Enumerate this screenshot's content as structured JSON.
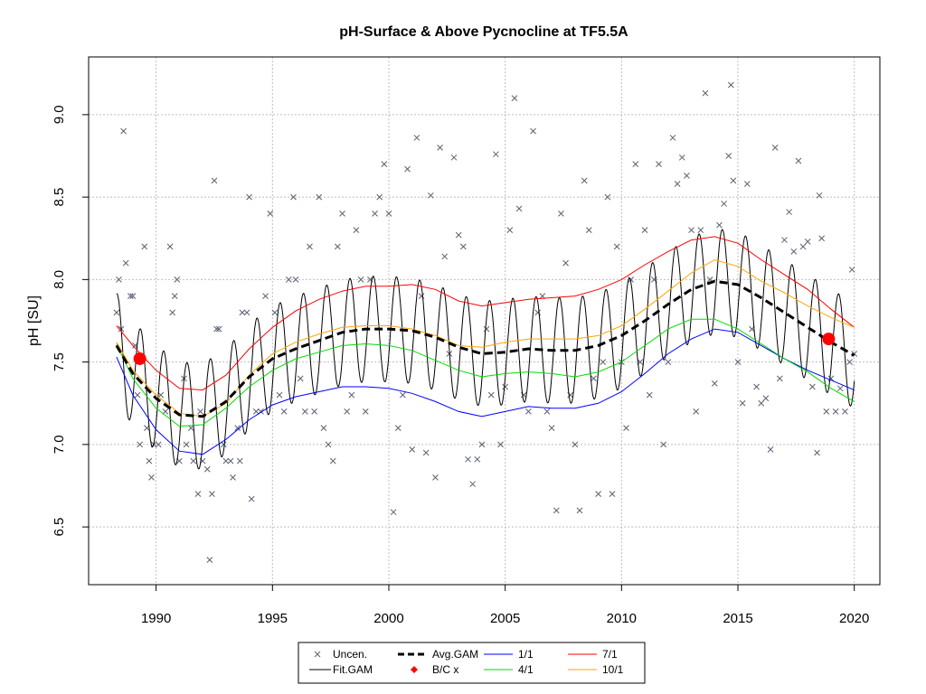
{
  "chart_data": {
    "type": "line",
    "title": "pH-Surface & Above Pycnocline at TF5.5A",
    "xlabel": "",
    "ylabel": "pH [SU]",
    "xlim": [
      1987.1,
      2021.1
    ],
    "ylim": [
      6.15,
      9.35
    ],
    "x_ticks": [
      1990,
      1995,
      2000,
      2005,
      2010,
      2015,
      2020
    ],
    "y_ticks": [
      6.5,
      7.0,
      7.5,
      8.0,
      8.5,
      9.0
    ],
    "y_tick_labels": [
      "6.5",
      "7.0",
      "7.5",
      "8.0",
      "8.5",
      "9.0"
    ],
    "grid": true,
    "legend_position": "bottom-center",
    "colors": {
      "uncensored": "#5a6172",
      "fit_gam": "#000000",
      "avg_gam": "#000000",
      "bc": "#ff0000",
      "s1": "#0000ff",
      "s4": "#00dd00",
      "s7": "#ff0000",
      "s10": "#ffa500",
      "grid": "#bebebe"
    },
    "legend": [
      {
        "key": "uncen",
        "label": "Uncen."
      },
      {
        "key": "avg",
        "label": "Avg.GAM"
      },
      {
        "key": "s1",
        "label": "1/1"
      },
      {
        "key": "s7",
        "label": "7/1"
      },
      {
        "key": "fit",
        "label": "Fit.GAM"
      },
      {
        "key": "bc",
        "label": "B/C x"
      },
      {
        "key": "s4",
        "label": "4/1"
      },
      {
        "key": "s10",
        "label": "10/1"
      }
    ],
    "seasonal_amplitude": 0.32,
    "series": [
      {
        "name": "Avg.GAM",
        "key": "avg",
        "style": "dashed",
        "x": [
          1988.3,
          1989,
          1990,
          1991,
          1992,
          1993,
          1994,
          1995,
          1996,
          1997,
          1998,
          1999,
          2000,
          2001,
          2002,
          2003,
          2004,
          2005,
          2006,
          2007,
          2008,
          2009,
          2010,
          2011,
          2012,
          2013,
          2014,
          2015,
          2016,
          2017,
          2018,
          2019,
          2020
        ],
        "y": [
          7.6,
          7.43,
          7.28,
          7.18,
          7.17,
          7.26,
          7.41,
          7.52,
          7.58,
          7.63,
          7.68,
          7.7,
          7.7,
          7.69,
          7.65,
          7.59,
          7.55,
          7.56,
          7.58,
          7.57,
          7.57,
          7.6,
          7.66,
          7.75,
          7.85,
          7.94,
          7.99,
          7.97,
          7.89,
          7.8,
          7.71,
          7.62,
          7.54
        ]
      },
      {
        "name": "1/1",
        "key": "s1",
        "x": [
          1988.3,
          1989,
          1990,
          1991,
          1992,
          1993,
          1994,
          1995,
          1996,
          1997,
          1998,
          1999,
          2000,
          2001,
          2002,
          2003,
          2004,
          2005,
          2006,
          2007,
          2008,
          2009,
          2010,
          2011,
          2012,
          2013,
          2014,
          2015,
          2016,
          2017,
          2018,
          2019,
          2020
        ],
        "y": [
          7.53,
          7.3,
          7.09,
          6.96,
          6.94,
          7.03,
          7.15,
          7.24,
          7.29,
          7.32,
          7.35,
          7.35,
          7.34,
          7.31,
          7.26,
          7.2,
          7.17,
          7.2,
          7.23,
          7.22,
          7.22,
          7.25,
          7.32,
          7.43,
          7.55,
          7.64,
          7.7,
          7.68,
          7.6,
          7.52,
          7.45,
          7.39,
          7.33
        ]
      },
      {
        "name": "4/1",
        "key": "s4",
        "x": [
          1988.3,
          1989,
          1990,
          1991,
          1992,
          1993,
          1994,
          1995,
          1996,
          1997,
          1998,
          1999,
          2000,
          2001,
          2002,
          2003,
          2004,
          2005,
          2006,
          2007,
          2008,
          2009,
          2010,
          2011,
          2012,
          2013,
          2014,
          2015,
          2016,
          2017,
          2018,
          2019,
          2020
        ],
        "y": [
          7.61,
          7.4,
          7.22,
          7.11,
          7.12,
          7.22,
          7.35,
          7.45,
          7.52,
          7.56,
          7.6,
          7.61,
          7.6,
          7.57,
          7.51,
          7.45,
          7.41,
          7.43,
          7.44,
          7.43,
          7.41,
          7.44,
          7.5,
          7.6,
          7.7,
          7.76,
          7.76,
          7.7,
          7.61,
          7.52,
          7.44,
          7.34,
          7.26
        ]
      },
      {
        "name": "7/1",
        "key": "s7",
        "x": [
          1988.3,
          1989,
          1990,
          1991,
          1992,
          1993,
          1994,
          1995,
          1996,
          1997,
          1998,
          1999,
          2000,
          2001,
          2002,
          2003,
          2004,
          2005,
          2006,
          2007,
          2008,
          2009,
          2010,
          2011,
          2012,
          2013,
          2014,
          2015,
          2016,
          2017,
          2018,
          2019,
          2020
        ],
        "y": [
          7.72,
          7.6,
          7.45,
          7.34,
          7.33,
          7.42,
          7.58,
          7.71,
          7.81,
          7.88,
          7.93,
          7.96,
          7.96,
          7.97,
          7.94,
          7.87,
          7.84,
          7.86,
          7.88,
          7.89,
          7.9,
          7.94,
          8.0,
          8.09,
          8.17,
          8.24,
          8.26,
          8.22,
          8.12,
          8.03,
          7.94,
          7.82,
          7.71
        ]
      },
      {
        "name": "10/1",
        "key": "s10",
        "x": [
          1988.3,
          1989,
          1990,
          1991,
          1992,
          1993,
          1994,
          1995,
          1996,
          1997,
          1998,
          1999,
          2000,
          2001,
          2002,
          2003,
          2004,
          2005,
          2006,
          2007,
          2008,
          2009,
          2010,
          2011,
          2012,
          2013,
          2014,
          2015,
          2016,
          2017,
          2018,
          2019,
          2020
        ],
        "y": [
          7.62,
          7.45,
          7.3,
          7.19,
          7.17,
          7.25,
          7.42,
          7.55,
          7.62,
          7.67,
          7.71,
          7.72,
          7.72,
          7.7,
          7.66,
          7.6,
          7.59,
          7.62,
          7.64,
          7.64,
          7.64,
          7.66,
          7.72,
          7.82,
          7.93,
          8.04,
          8.12,
          8.08,
          7.99,
          7.92,
          7.84,
          7.77,
          7.71
        ]
      }
    ],
    "bc_points": [
      {
        "x": 1989.3,
        "y": 7.52
      },
      {
        "x": 2018.9,
        "y": 7.64
      }
    ],
    "uncensored_points": [
      [
        1988.3,
        7.8
      ],
      [
        1988.4,
        8.0
      ],
      [
        1988.5,
        7.7
      ],
      [
        1988.6,
        8.9
      ],
      [
        1988.7,
        8.1
      ],
      [
        1988.9,
        7.9
      ],
      [
        1989.0,
        7.9
      ],
      [
        1989.1,
        7.6
      ],
      [
        1989.2,
        7.3
      ],
      [
        1989.3,
        7.0
      ],
      [
        1989.5,
        8.2
      ],
      [
        1989.6,
        7.1
      ],
      [
        1989.7,
        6.9
      ],
      [
        1989.8,
        6.8
      ],
      [
        1989.9,
        7.0
      ],
      [
        1990.1,
        7.0
      ],
      [
        1990.2,
        7.3
      ],
      [
        1990.4,
        7.2
      ],
      [
        1990.6,
        8.2
      ],
      [
        1990.7,
        7.8
      ],
      [
        1990.8,
        7.9
      ],
      [
        1990.9,
        8.0
      ],
      [
        1991.0,
        6.9
      ],
      [
        1991.2,
        7.4
      ],
      [
        1991.3,
        7.0
      ],
      [
        1991.5,
        7.1
      ],
      [
        1991.6,
        6.9
      ],
      [
        1991.8,
        6.7
      ],
      [
        1991.9,
        7.2
      ],
      [
        1992.0,
        6.9
      ],
      [
        1992.2,
        6.85
      ],
      [
        1992.3,
        6.3
      ],
      [
        1992.4,
        6.7
      ],
      [
        1992.5,
        8.6
      ],
      [
        1992.6,
        7.7
      ],
      [
        1992.7,
        7.7
      ],
      [
        1992.9,
        7.0
      ],
      [
        1993.0,
        6.9
      ],
      [
        1993.2,
        6.9
      ],
      [
        1993.3,
        6.8
      ],
      [
        1993.5,
        7.1
      ],
      [
        1993.6,
        6.9
      ],
      [
        1993.7,
        7.8
      ],
      [
        1993.9,
        7.8
      ],
      [
        1994.0,
        8.5
      ],
      [
        1994.1,
        6.67
      ],
      [
        1994.3,
        7.2
      ],
      [
        1994.5,
        7.2
      ],
      [
        1994.7,
        7.9
      ],
      [
        1994.9,
        8.4
      ],
      [
        1995.1,
        7.8
      ],
      [
        1995.3,
        7.3
      ],
      [
        1995.5,
        7.2
      ],
      [
        1995.7,
        8.0
      ],
      [
        1995.9,
        8.5
      ],
      [
        1996.0,
        8.0
      ],
      [
        1996.2,
        7.4
      ],
      [
        1996.4,
        7.2
      ],
      [
        1996.6,
        8.2
      ],
      [
        1996.8,
        7.2
      ],
      [
        1997.0,
        8.5
      ],
      [
        1997.2,
        7.1
      ],
      [
        1997.4,
        7.0
      ],
      [
        1997.6,
        6.9
      ],
      [
        1997.8,
        8.2
      ],
      [
        1998.0,
        8.4
      ],
      [
        1998.2,
        7.2
      ],
      [
        1998.4,
        7.3
      ],
      [
        1998.6,
        8.3
      ],
      [
        1998.8,
        8.0
      ],
      [
        1999.0,
        7.2
      ],
      [
        1999.2,
        8.0
      ],
      [
        1999.4,
        8.4
      ],
      [
        1999.6,
        8.5
      ],
      [
        1999.8,
        8.7
      ],
      [
        2000.0,
        8.4
      ],
      [
        2000.2,
        6.59
      ],
      [
        2000.4,
        7.1
      ],
      [
        2000.6,
        7.3
      ],
      [
        2000.8,
        8.67
      ],
      [
        2001.0,
        6.97
      ],
      [
        2001.2,
        8.86
      ],
      [
        2001.4,
        7.9
      ],
      [
        2001.6,
        6.95
      ],
      [
        2001.8,
        8.51
      ],
      [
        2002.0,
        6.8
      ],
      [
        2002.2,
        8.8
      ],
      [
        2002.4,
        8.14
      ],
      [
        2002.6,
        7.55
      ],
      [
        2002.8,
        8.74
      ],
      [
        2003.0,
        8.27
      ],
      [
        2003.2,
        8.2
      ],
      [
        2003.4,
        6.91
      ],
      [
        2003.6,
        6.76
      ],
      [
        2003.8,
        6.91
      ],
      [
        2004.0,
        7.0
      ],
      [
        2004.2,
        7.7
      ],
      [
        2004.4,
        7.3
      ],
      [
        2004.6,
        8.76
      ],
      [
        2004.8,
        7.0
      ],
      [
        2005.0,
        7.35
      ],
      [
        2005.2,
        8.3
      ],
      [
        2005.4,
        9.1
      ],
      [
        2005.6,
        8.43
      ],
      [
        2005.8,
        7.3
      ],
      [
        2006.0,
        7.2
      ],
      [
        2006.2,
        8.9
      ],
      [
        2006.4,
        7.8
      ],
      [
        2006.6,
        7.9
      ],
      [
        2006.8,
        7.2
      ],
      [
        2007.0,
        7.1
      ],
      [
        2007.2,
        6.6
      ],
      [
        2007.4,
        8.4
      ],
      [
        2007.6,
        8.1
      ],
      [
        2007.8,
        7.3
      ],
      [
        2008.0,
        7.0
      ],
      [
        2008.2,
        6.6
      ],
      [
        2008.4,
        8.6
      ],
      [
        2008.6,
        8.3
      ],
      [
        2008.8,
        7.4
      ],
      [
        2009.0,
        6.7
      ],
      [
        2009.2,
        7.5
      ],
      [
        2009.4,
        8.5
      ],
      [
        2009.6,
        6.7
      ],
      [
        2009.8,
        8.2
      ],
      [
        2010.0,
        7.5
      ],
      [
        2010.2,
        7.1
      ],
      [
        2010.4,
        8.0
      ],
      [
        2010.6,
        8.7
      ],
      [
        2010.8,
        7.5
      ],
      [
        2011.0,
        8.3
      ],
      [
        2011.2,
        7.3
      ],
      [
        2011.4,
        8.0
      ],
      [
        2011.6,
        8.7
      ],
      [
        2011.8,
        7.0
      ],
      [
        2012.0,
        7.5
      ],
      [
        2012.2,
        8.86
      ],
      [
        2012.4,
        8.58
      ],
      [
        2012.6,
        8.74
      ],
      [
        2012.8,
        8.63
      ],
      [
        2013.0,
        8.3
      ],
      [
        2013.2,
        7.2
      ],
      [
        2013.4,
        8.3
      ],
      [
        2013.6,
        9.13
      ],
      [
        2013.8,
        8.0
      ],
      [
        2014.0,
        7.37
      ],
      [
        2014.2,
        8.33
      ],
      [
        2014.4,
        8.46
      ],
      [
        2014.6,
        8.75
      ],
      [
        2014.7,
        9.18
      ],
      [
        2014.8,
        8.6
      ],
      [
        2015.0,
        7.5
      ],
      [
        2015.2,
        7.25
      ],
      [
        2015.4,
        8.58
      ],
      [
        2015.6,
        7.7
      ],
      [
        2015.8,
        7.35
      ],
      [
        2016.0,
        7.25
      ],
      [
        2016.2,
        7.28
      ],
      [
        2016.4,
        6.97
      ],
      [
        2016.6,
        8.8
      ],
      [
        2016.8,
        7.4
      ],
      [
        2017.0,
        8.24
      ],
      [
        2017.2,
        8.41
      ],
      [
        2017.4,
        8.17
      ],
      [
        2017.6,
        8.72
      ],
      [
        2017.8,
        8.2
      ],
      [
        2018.0,
        8.23
      ],
      [
        2018.2,
        7.35
      ],
      [
        2018.4,
        6.95
      ],
      [
        2018.5,
        8.51
      ],
      [
        2018.6,
        8.25
      ],
      [
        2018.8,
        7.2
      ],
      [
        2019.0,
        7.4
      ],
      [
        2019.2,
        7.2
      ],
      [
        2019.4,
        7.34
      ],
      [
        2019.6,
        7.2
      ],
      [
        2019.8,
        7.5
      ],
      [
        2019.9,
        8.06
      ],
      [
        2020.0,
        7.55
      ]
    ]
  }
}
